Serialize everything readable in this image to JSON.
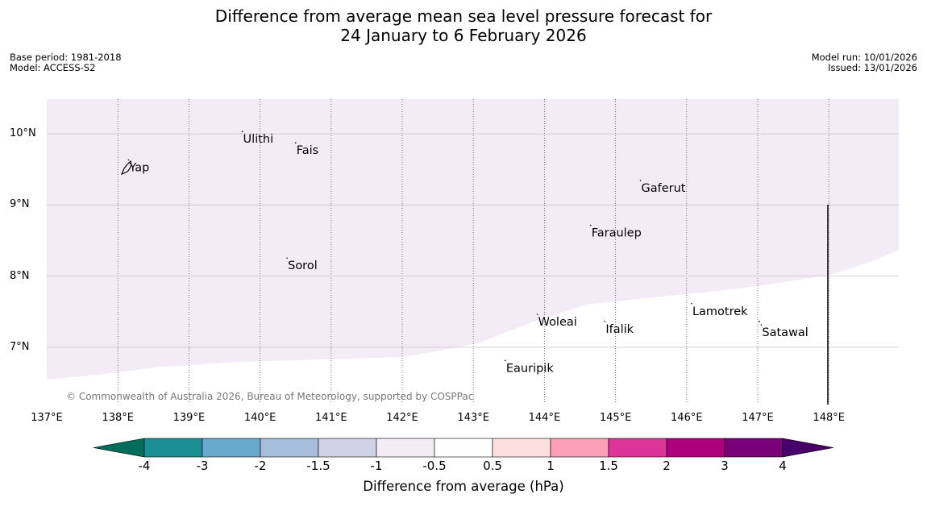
{
  "header": {
    "title_line1": "Difference from average mean sea level pressure forecast for",
    "title_line2": "24 January to 6 February 2026",
    "base_period": "Base period: 1981-2018",
    "model": "Model: ACCESS-S2",
    "model_run": "Model run: 10/01/2026",
    "issued": "Issued: 13/01/2026"
  },
  "map": {
    "lon_labels": [
      "137°E",
      "138°E",
      "139°E",
      "140°E",
      "141°E",
      "142°E",
      "143°E",
      "144°E",
      "145°E",
      "146°E",
      "147°E",
      "148°E"
    ],
    "lat_labels": [
      "10°N",
      "9°N",
      "8°N",
      "7°N"
    ],
    "places": [
      {
        "name": "Yap",
        "lon": 138.15,
        "lat": 9.52
      },
      {
        "name": "Ulithi",
        "lon": 139.75,
        "lat": 9.92
      },
      {
        "name": "Fais",
        "lon": 140.5,
        "lat": 9.76
      },
      {
        "name": "Gaferut",
        "lon": 145.35,
        "lat": 9.23
      },
      {
        "name": "Faraulep",
        "lon": 144.65,
        "lat": 8.6
      },
      {
        "name": "Sorol",
        "lon": 140.38,
        "lat": 8.14
      },
      {
        "name": "Woleai",
        "lon": 143.9,
        "lat": 7.35
      },
      {
        "name": "Ifalik",
        "lon": 144.85,
        "lat": 7.25
      },
      {
        "name": "Lamotrek",
        "lon": 146.07,
        "lat": 7.5
      },
      {
        "name": "Satawal",
        "lon": 147.05,
        "lat": 7.2
      },
      {
        "name": "Eauripik",
        "lon": 143.45,
        "lat": 6.7
      }
    ],
    "copyright": "© Commonwealth of Australia 2026, Bureau of Meteorology, supported by COSPPac"
  },
  "colorbar": {
    "labels": [
      "-4",
      "-3",
      "-2",
      "-1.5",
      "-1",
      "-0.5",
      "0.5",
      "1",
      "1.5",
      "2",
      "3",
      "4"
    ],
    "colors": [
      "#1b8f93",
      "#67a9cf",
      "#a6bddb",
      "#d0d1e6",
      "#f3ecf6",
      "#ffffff",
      "#fde0dd",
      "#fa9fb5",
      "#dd3497",
      "#ae017e",
      "#7a0177"
    ],
    "low_color": "#016c59",
    "high_color": "#49006a",
    "unit_label": "Difference from average (hPa)"
  },
  "shading": {
    "category": "-1 to -0.5",
    "color": "#f3ecf6"
  }
}
